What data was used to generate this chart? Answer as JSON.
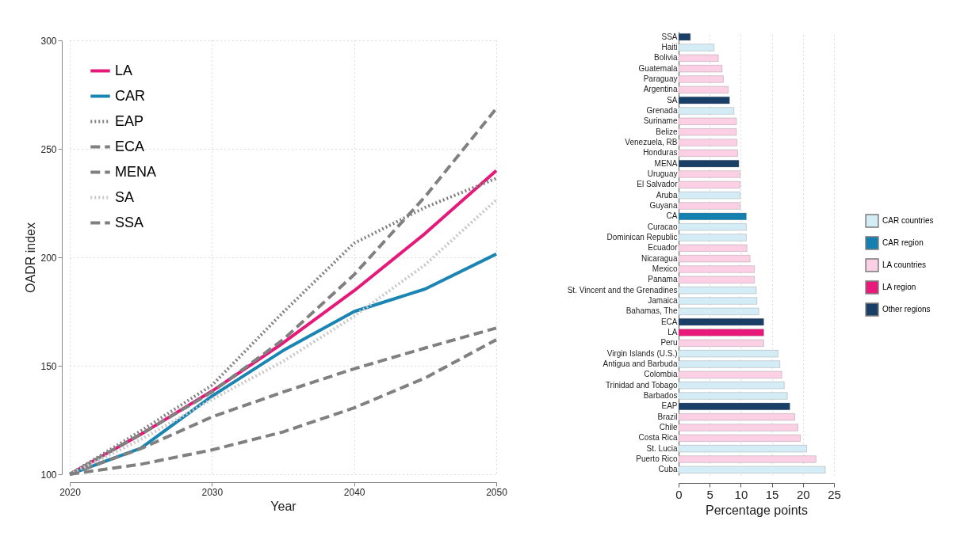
{
  "chart_data": [
    {
      "type": "line",
      "xlabel": "Year",
      "ylabel": "OADR index",
      "x": [
        2020,
        2025,
        2030,
        2035,
        2040,
        2045,
        2050
      ],
      "xlim": [
        2020,
        2050
      ],
      "xticks": [
        2020,
        2030,
        2040,
        2050
      ],
      "ylim": [
        100,
        300
      ],
      "yticks": [
        100,
        150,
        200,
        250,
        300
      ],
      "grid": true,
      "legend": "top left",
      "series": [
        {
          "name": "LA",
          "color": "#e5197a",
          "line_style": "solid",
          "values": [
            100,
            118.4,
            138.3,
            160.5,
            184.6,
            211,
            240
          ]
        },
        {
          "name": "CAR",
          "color": "#1a85b3",
          "line_style": "solid",
          "values": [
            100,
            112,
            136,
            157,
            175,
            185.4,
            201.5
          ]
        },
        {
          "name": "EAP",
          "color": "#808080",
          "line_style": "dotted",
          "values": [
            100,
            120,
            141,
            174.6,
            206.5,
            223,
            236.4
          ]
        },
        {
          "name": "ECA",
          "color": "#808080",
          "line_style": "dashed",
          "values": [
            100,
            111.8,
            126.4,
            137.9,
            148.6,
            158.2,
            167.4
          ]
        },
        {
          "name": "MENA",
          "color": "#808080",
          "line_style": "dashed",
          "values": [
            100,
            118.4,
            137.9,
            162,
            192,
            228,
            268.6
          ]
        },
        {
          "name": "SA",
          "color": "#c8c8c8",
          "line_style": "dotted",
          "values": [
            100,
            116,
            134.5,
            152,
            172.8,
            196.6,
            226.5
          ]
        },
        {
          "name": "SSA",
          "color": "#808080",
          "line_style": "dashed",
          "values": [
            100,
            104.6,
            111.2,
            119.5,
            130.6,
            144.4,
            162
          ]
        }
      ]
    },
    {
      "type": "bar",
      "orientation": "horizontal",
      "xlabel": "Percentage points",
      "xlim": [
        0,
        25
      ],
      "xticks": [
        0,
        5,
        10,
        15,
        20,
        25
      ],
      "grid": "x",
      "legend": "right",
      "categories": [
        "SSA",
        "Haiti",
        "Bolivia",
        "Guatemala",
        "Paraguay",
        "Argentina",
        "SA",
        "Grenada",
        "Suriname",
        "Belize",
        "Venezuela, RB",
        "Honduras",
        "MENA",
        "Uruguay",
        "El Salvador",
        "Aruba",
        "Guyana",
        "CA",
        "Curacao",
        "Dominican Republic",
        "Ecuador",
        "Nicaragua",
        "Mexico",
        "Panama",
        "St. Vincent and the Grenadines",
        "Jamaica",
        "Bahamas, The",
        "ECA",
        "LA",
        "Peru",
        "Virgin Islands (U.S.)",
        "Antigua and Barbuda",
        "Colombia",
        "Trinidad and Tobago",
        "Barbados",
        "EAP",
        "Brazil",
        "Chile",
        "Costa Rica",
        "St. Lucia",
        "Puerto Rico",
        "Cuba"
      ],
      "series": [
        {
          "name": "CAR countries",
          "color": "#d3ecf5",
          "values": [
            null,
            5.7,
            null,
            null,
            null,
            null,
            null,
            8.9,
            null,
            null,
            null,
            null,
            null,
            null,
            null,
            9.9,
            null,
            null,
            10.9,
            10.9,
            null,
            null,
            null,
            null,
            12.5,
            12.6,
            12.9,
            null,
            null,
            null,
            16.0,
            16.3,
            null,
            17.0,
            17.5,
            null,
            null,
            null,
            null,
            20.6,
            null,
            23.6
          ]
        },
        {
          "name": "CAR region",
          "color": "#1380b0",
          "values": [
            null,
            null,
            null,
            null,
            null,
            null,
            null,
            null,
            null,
            null,
            null,
            null,
            null,
            null,
            null,
            null,
            null,
            10.9,
            null,
            null,
            null,
            null,
            null,
            null,
            null,
            null,
            null,
            null,
            null,
            null,
            null,
            null,
            null,
            null,
            null,
            null,
            null,
            null,
            null,
            null,
            null,
            null
          ]
        },
        {
          "name": "LA countries",
          "color": "#fbcfe4",
          "values": [
            null,
            null,
            6.4,
            7.0,
            7.2,
            8.0,
            null,
            null,
            9.3,
            9.3,
            9.4,
            9.5,
            null,
            9.9,
            9.9,
            null,
            9.9,
            null,
            null,
            null,
            11.0,
            11.5,
            12.2,
            12.2,
            null,
            null,
            null,
            null,
            null,
            13.7,
            null,
            null,
            16.6,
            null,
            null,
            null,
            18.7,
            19.2,
            19.6,
            null,
            22.1,
            null
          ]
        },
        {
          "name": "LA region",
          "color": "#e8197a",
          "values": [
            null,
            null,
            null,
            null,
            null,
            null,
            null,
            null,
            null,
            null,
            null,
            null,
            null,
            null,
            null,
            null,
            null,
            null,
            null,
            null,
            null,
            null,
            null,
            null,
            null,
            null,
            null,
            null,
            13.7,
            null,
            null,
            null,
            null,
            null,
            null,
            null,
            null,
            null,
            null,
            null,
            null,
            null
          ]
        },
        {
          "name": "Other regions",
          "color": "#1a3f66",
          "values": [
            1.9,
            null,
            null,
            null,
            null,
            null,
            8.2,
            null,
            null,
            null,
            null,
            null,
            9.7,
            null,
            null,
            null,
            null,
            null,
            null,
            null,
            null,
            null,
            null,
            null,
            null,
            null,
            null,
            13.7,
            null,
            null,
            null,
            null,
            null,
            null,
            null,
            17.9,
            null,
            null,
            null,
            null,
            null,
            null
          ]
        }
      ]
    }
  ]
}
